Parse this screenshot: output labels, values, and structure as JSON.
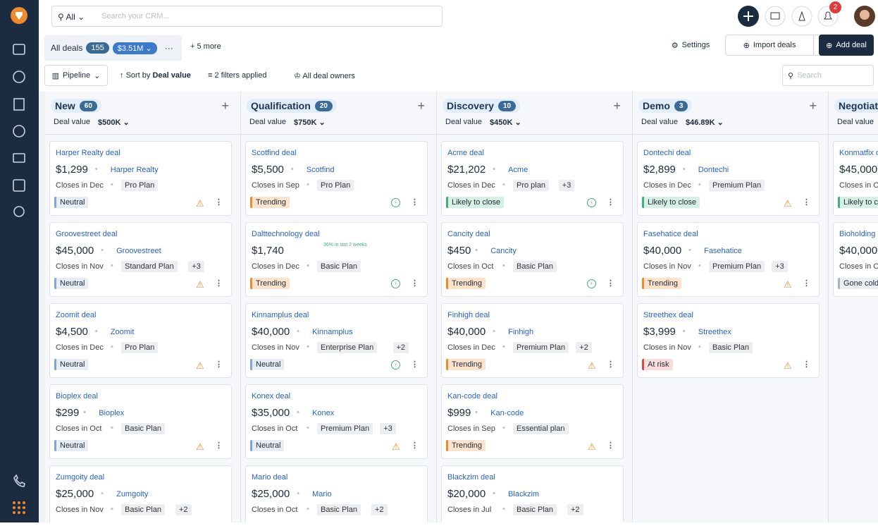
{
  "search": {
    "scope": "All",
    "placeholder": "Search your CRM..."
  },
  "notifications": 2,
  "tabs": {
    "active": "All deals",
    "count": 155,
    "value": "$3.51M",
    "more": "+ 5 more"
  },
  "actions": {
    "settings": "Settings",
    "import": "Import deals",
    "add": "Add deal"
  },
  "toolbar": {
    "view": "Pipeline",
    "sort_prefix": "Sort by",
    "sort_field": "Deal value",
    "filters": "2 filters applied",
    "owners": "All deal owners",
    "search_placeholder": "Search"
  },
  "columns": [
    {
      "name": "New",
      "count": 60,
      "value_label": "Deal value",
      "value": "$500K",
      "deals": [
        {
          "title": "Harper Realty deal",
          "amount": "$1,299",
          "company": "Harper Realty",
          "closes": "Closes in Dec",
          "plan": "Pro Plan",
          "status": "Neutral",
          "tone": "blue",
          "icon": "alert"
        },
        {
          "title": "Groovestreet deal",
          "amount": "$45,000",
          "company": "Groovestreet",
          "closes": "Closes in Nov",
          "plan": "Standard Plan",
          "extra": "+3",
          "status": "Neutral",
          "tone": "blue",
          "icon": "alert"
        },
        {
          "title": "Zoomit deal",
          "amount": "$4,500",
          "company": "Zoomit",
          "closes": "Closes in Dec",
          "plan": "Pro Plan",
          "status": "Neutral",
          "tone": "blue",
          "icon": "alert"
        },
        {
          "title": "Bioplex deal",
          "amount": "$299",
          "company": "Bioplex",
          "closes": "Closes in Oct",
          "plan": "Basic Plan",
          "status": "Neutral",
          "tone": "blue",
          "icon": "alert"
        },
        {
          "title": "Zumgoity deal",
          "amount": "$25,000",
          "company": "Zumgoity",
          "closes": "Closes in Nov",
          "plan": "Basic Plan",
          "extra": "+2"
        }
      ]
    },
    {
      "name": "Qualification",
      "count": 20,
      "value_label": "Deal value",
      "value": "$750K",
      "deals": [
        {
          "title": "Scotfind deal",
          "amount": "$5,500",
          "company": "Scotfind",
          "closes": "Closes in Sep",
          "plan": "Pro Plan",
          "status": "Trending",
          "tone": "orange",
          "icon": "up"
        },
        {
          "title": "Dalttechnology deal",
          "amount": "$1,740",
          "note": "36% in last 2 weeks",
          "closes": "Closes in Dec",
          "plan": "Basic Plan",
          "status": "Trending",
          "tone": "orange",
          "icon": "up"
        },
        {
          "title": "Kinnamplus deal",
          "amount": "$40,000",
          "company": "Kinnamplus",
          "closes": "Closes in Nov",
          "plan": "Enterprise Plan",
          "extra": "+2",
          "status": "Neutral",
          "tone": "blue",
          "icon": "up"
        },
        {
          "title": "Konex deal",
          "amount": "$35,000",
          "company": "Konex",
          "closes": "Closes in Oct",
          "plan": "Premium Plan",
          "extra": "+3",
          "status": "Neutral",
          "tone": "blue",
          "icon": "alert"
        },
        {
          "title": "Mario deal",
          "amount": "$25,000",
          "company": "Mario",
          "closes": "Closes in Oct",
          "plan": "Basic Plan",
          "extra": "+2"
        }
      ]
    },
    {
      "name": "Discovery",
      "count": 10,
      "value_label": "Deal value",
      "value": "$450K",
      "deals": [
        {
          "title": "Acme deal",
          "amount": "$21,202",
          "company": "Acme",
          "closes": "Closes in Dec",
          "plan": "Pro plan",
          "extra": "+3",
          "status": "Likely to close",
          "tone": "green",
          "icon": "up"
        },
        {
          "title": "Cancity deal",
          "amount": "$450",
          "company": "Cancity",
          "closes": "Closes in Oct",
          "plan": "Basic Plan",
          "status": "Trending",
          "tone": "orange",
          "icon": "up"
        },
        {
          "title": "Finhigh deal",
          "amount": "$40,000",
          "company": "Finhigh",
          "closes": "Closes in Dec",
          "plan": "Premium Plan",
          "extra": "+2",
          "status": "Trending",
          "tone": "orange",
          "icon": "alert"
        },
        {
          "title": "Kan-code deal",
          "amount": "$999",
          "company": "Kan-code",
          "closes": "Closes in Sep",
          "plan": "Essential plan",
          "status": "Trending",
          "tone": "orange",
          "icon": "alert"
        },
        {
          "title": "Blackzim deal",
          "amount": "$20,000",
          "company": "Blackzim",
          "closes": "Closes in Jul",
          "plan": "Basic Plan",
          "extra": "+2"
        }
      ]
    },
    {
      "name": "Demo",
      "count": 3,
      "value_label": "Deal value",
      "value": "$46.89K",
      "deals": [
        {
          "title": "Dontechi deal",
          "amount": "$2,899",
          "company": "Dontechi",
          "closes": "Closes in Dec",
          "plan": "Premium Plan",
          "status": "Likely to close",
          "tone": "green",
          "icon": "alert"
        },
        {
          "title": "Fasehatice deal",
          "amount": "$40,000",
          "company": "Fasehatice",
          "closes": "Closes in Nov",
          "plan": "Premium Plan",
          "extra": "+3",
          "status": "Trending",
          "tone": "orange",
          "icon": "alert"
        },
        {
          "title": "Streethex deal",
          "amount": "$3,999",
          "company": "Streethex",
          "closes": "Closes in Nov",
          "plan": "Basic Plan",
          "status": "At risk",
          "tone": "red",
          "icon": "alert"
        }
      ]
    },
    {
      "name": "Negotiation",
      "value_label": "Deal value",
      "deals": [
        {
          "title": "Konmatfix deal",
          "amount": "$45,000",
          "closes": "Closes in Oct",
          "status": "Likely to close",
          "tone": "green"
        },
        {
          "title": "Bioholding deal",
          "amount": "$40,000",
          "closes": "Closes in Oct",
          "status": "Gone cold",
          "tone": "gray"
        }
      ]
    }
  ]
}
